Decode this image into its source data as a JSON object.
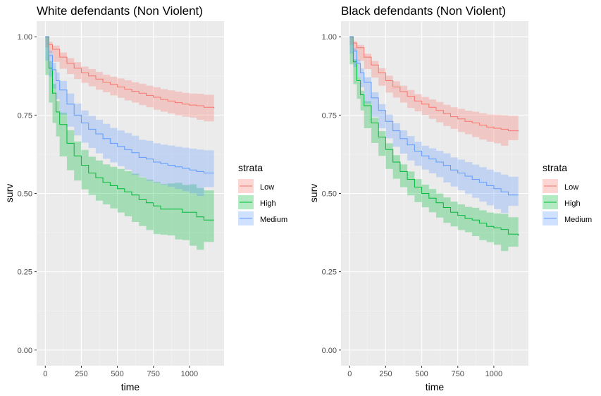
{
  "chart_data": [
    {
      "type": "line",
      "title": "White defendants (Non Violent)",
      "xlabel": "time",
      "ylabel": "surv",
      "xlim": [
        -60,
        1240
      ],
      "ylim": [
        -0.05,
        1.05
      ],
      "x_ticks": [
        "0",
        "250",
        "500",
        "750",
        "1000"
      ],
      "y_ticks": [
        "0.00",
        "0.25",
        "0.50",
        "0.75",
        "1.00"
      ],
      "grid": true,
      "legend": {
        "title": "strata",
        "position": "right"
      },
      "series": [
        {
          "name": "Low",
          "color": "#F8766D",
          "x": [
            0,
            25,
            50,
            100,
            150,
            200,
            250,
            300,
            350,
            400,
            450,
            500,
            550,
            600,
            650,
            700,
            750,
            800,
            850,
            900,
            950,
            1000,
            1050,
            1100,
            1170
          ],
          "y": [
            1.0,
            0.975,
            0.96,
            0.935,
            0.915,
            0.9,
            0.885,
            0.875,
            0.865,
            0.855,
            0.848,
            0.84,
            0.833,
            0.826,
            0.82,
            0.813,
            0.807,
            0.8,
            0.795,
            0.79,
            0.785,
            0.782,
            0.78,
            0.775,
            0.772
          ],
          "lower": [
            1.0,
            0.966,
            0.948,
            0.92,
            0.898,
            0.881,
            0.865,
            0.853,
            0.842,
            0.831,
            0.823,
            0.813,
            0.805,
            0.797,
            0.79,
            0.782,
            0.775,
            0.767,
            0.761,
            0.755,
            0.749,
            0.745,
            0.742,
            0.735,
            0.73
          ],
          "upper": [
            1.0,
            0.984,
            0.972,
            0.95,
            0.932,
            0.919,
            0.905,
            0.897,
            0.888,
            0.879,
            0.873,
            0.867,
            0.861,
            0.855,
            0.85,
            0.844,
            0.839,
            0.833,
            0.829,
            0.825,
            0.821,
            0.819,
            0.818,
            0.815,
            0.814
          ]
        },
        {
          "name": "High",
          "color": "#00BA38",
          "x": [
            0,
            25,
            50,
            75,
            100,
            150,
            200,
            250,
            300,
            350,
            400,
            450,
            500,
            550,
            600,
            650,
            700,
            750,
            800,
            850,
            900,
            950,
            1000,
            1050,
            1100,
            1170
          ],
          "y": [
            1.0,
            0.9,
            0.82,
            0.76,
            0.72,
            0.66,
            0.62,
            0.59,
            0.565,
            0.55,
            0.535,
            0.525,
            0.515,
            0.505,
            0.495,
            0.48,
            0.47,
            0.46,
            0.45,
            0.45,
            0.45,
            0.44,
            0.44,
            0.425,
            0.415,
            0.415
          ],
          "lower": [
            1.0,
            0.878,
            0.79,
            0.725,
            0.682,
            0.618,
            0.574,
            0.541,
            0.513,
            0.495,
            0.477,
            0.465,
            0.452,
            0.439,
            0.427,
            0.409,
            0.396,
            0.383,
            0.37,
            0.368,
            0.366,
            0.353,
            0.351,
            0.333,
            0.32,
            0.345
          ],
          "upper": [
            1.0,
            0.922,
            0.85,
            0.795,
            0.758,
            0.702,
            0.666,
            0.639,
            0.617,
            0.605,
            0.593,
            0.585,
            0.578,
            0.571,
            0.563,
            0.551,
            0.544,
            0.537,
            0.53,
            0.532,
            0.534,
            0.527,
            0.529,
            0.517,
            0.51,
            0.505
          ]
        },
        {
          "name": "Medium",
          "color": "#619CFF",
          "x": [
            0,
            25,
            50,
            75,
            100,
            150,
            200,
            250,
            300,
            350,
            400,
            450,
            500,
            550,
            600,
            650,
            700,
            750,
            800,
            850,
            900,
            950,
            1000,
            1050,
            1100,
            1170
          ],
          "y": [
            1.0,
            0.94,
            0.895,
            0.86,
            0.83,
            0.785,
            0.75,
            0.725,
            0.705,
            0.69,
            0.675,
            0.66,
            0.65,
            0.64,
            0.63,
            0.615,
            0.61,
            0.6,
            0.595,
            0.59,
            0.585,
            0.58,
            0.575,
            0.57,
            0.565,
            0.565
          ],
          "lower": [
            1.0,
            0.924,
            0.873,
            0.834,
            0.801,
            0.751,
            0.713,
            0.685,
            0.662,
            0.645,
            0.628,
            0.611,
            0.599,
            0.587,
            0.576,
            0.559,
            0.552,
            0.54,
            0.534,
            0.527,
            0.521,
            0.514,
            0.507,
            0.5,
            0.492,
            0.52
          ],
          "upper": [
            1.0,
            0.956,
            0.917,
            0.886,
            0.859,
            0.819,
            0.787,
            0.765,
            0.748,
            0.735,
            0.722,
            0.709,
            0.701,
            0.693,
            0.684,
            0.671,
            0.668,
            0.66,
            0.656,
            0.653,
            0.649,
            0.646,
            0.643,
            0.64,
            0.638,
            0.615
          ]
        }
      ]
    },
    {
      "type": "line",
      "title": "Black defendants (Non Violent)",
      "xlabel": "time",
      "ylabel": "surv",
      "xlim": [
        -60,
        1240
      ],
      "ylim": [
        -0.05,
        1.05
      ],
      "x_ticks": [
        "0",
        "250",
        "500",
        "750",
        "1000"
      ],
      "y_ticks": [
        "0.00",
        "0.25",
        "0.50",
        "0.75",
        "1.00"
      ],
      "grid": true,
      "legend": {
        "title": "strata",
        "position": "right"
      },
      "series": [
        {
          "name": "Low",
          "color": "#F8766D",
          "x": [
            0,
            25,
            50,
            100,
            150,
            200,
            250,
            300,
            350,
            400,
            450,
            500,
            550,
            600,
            650,
            700,
            750,
            800,
            850,
            900,
            950,
            1000,
            1050,
            1100,
            1170
          ],
          "y": [
            1.0,
            0.98,
            0.965,
            0.935,
            0.91,
            0.885,
            0.86,
            0.84,
            0.825,
            0.81,
            0.795,
            0.785,
            0.775,
            0.765,
            0.755,
            0.745,
            0.738,
            0.73,
            0.725,
            0.718,
            0.712,
            0.708,
            0.705,
            0.7,
            0.698
          ],
          "lower": [
            1.0,
            0.974,
            0.956,
            0.924,
            0.897,
            0.87,
            0.844,
            0.822,
            0.806,
            0.79,
            0.773,
            0.762,
            0.75,
            0.738,
            0.727,
            0.715,
            0.706,
            0.696,
            0.689,
            0.68,
            0.672,
            0.665,
            0.66,
            0.652,
            0.67
          ],
          "upper": [
            1.0,
            0.986,
            0.974,
            0.946,
            0.923,
            0.9,
            0.876,
            0.858,
            0.844,
            0.83,
            0.817,
            0.808,
            0.8,
            0.792,
            0.783,
            0.775,
            0.77,
            0.764,
            0.761,
            0.756,
            0.752,
            0.751,
            0.75,
            0.748,
            0.73
          ]
        },
        {
          "name": "High",
          "color": "#00BA38",
          "x": [
            0,
            25,
            50,
            75,
            100,
            150,
            200,
            250,
            300,
            350,
            400,
            450,
            500,
            550,
            600,
            650,
            700,
            750,
            800,
            850,
            900,
            950,
            1000,
            1050,
            1100,
            1170
          ],
          "y": [
            1.0,
            0.92,
            0.86,
            0.815,
            0.78,
            0.725,
            0.68,
            0.64,
            0.6,
            0.57,
            0.545,
            0.52,
            0.5,
            0.485,
            0.47,
            0.455,
            0.44,
            0.43,
            0.42,
            0.415,
            0.405,
            0.395,
            0.39,
            0.385,
            0.37,
            0.365
          ],
          "lower": [
            1.0,
            0.912,
            0.849,
            0.802,
            0.765,
            0.708,
            0.661,
            0.62,
            0.578,
            0.547,
            0.52,
            0.494,
            0.472,
            0.456,
            0.44,
            0.423,
            0.406,
            0.395,
            0.383,
            0.376,
            0.364,
            0.351,
            0.344,
            0.336,
            0.316,
            0.33
          ],
          "upper": [
            1.0,
            0.928,
            0.871,
            0.828,
            0.795,
            0.742,
            0.699,
            0.66,
            0.622,
            0.593,
            0.57,
            0.546,
            0.528,
            0.514,
            0.5,
            0.487,
            0.474,
            0.465,
            0.457,
            0.454,
            0.446,
            0.439,
            0.436,
            0.434,
            0.424,
            0.41
          ]
        },
        {
          "name": "Medium",
          "color": "#619CFF",
          "x": [
            0,
            25,
            50,
            75,
            100,
            150,
            200,
            250,
            300,
            350,
            400,
            450,
            500,
            550,
            600,
            650,
            700,
            750,
            800,
            850,
            900,
            950,
            1000,
            1050,
            1100,
            1170
          ],
          "y": [
            1.0,
            0.955,
            0.915,
            0.885,
            0.855,
            0.805,
            0.765,
            0.73,
            0.7,
            0.675,
            0.655,
            0.635,
            0.62,
            0.61,
            0.6,
            0.59,
            0.575,
            0.565,
            0.555,
            0.545,
            0.535,
            0.525,
            0.515,
            0.505,
            0.495,
            0.495
          ],
          "lower": [
            1.0,
            0.946,
            0.903,
            0.871,
            0.839,
            0.787,
            0.745,
            0.708,
            0.676,
            0.649,
            0.627,
            0.605,
            0.588,
            0.576,
            0.564,
            0.552,
            0.535,
            0.522,
            0.51,
            0.498,
            0.486,
            0.474,
            0.462,
            0.45,
            0.437,
            0.46
          ],
          "upper": [
            1.0,
            0.964,
            0.927,
            0.899,
            0.871,
            0.823,
            0.785,
            0.752,
            0.724,
            0.701,
            0.683,
            0.665,
            0.652,
            0.644,
            0.636,
            0.628,
            0.615,
            0.608,
            0.6,
            0.592,
            0.584,
            0.576,
            0.568,
            0.56,
            0.553,
            0.53
          ]
        }
      ]
    }
  ]
}
